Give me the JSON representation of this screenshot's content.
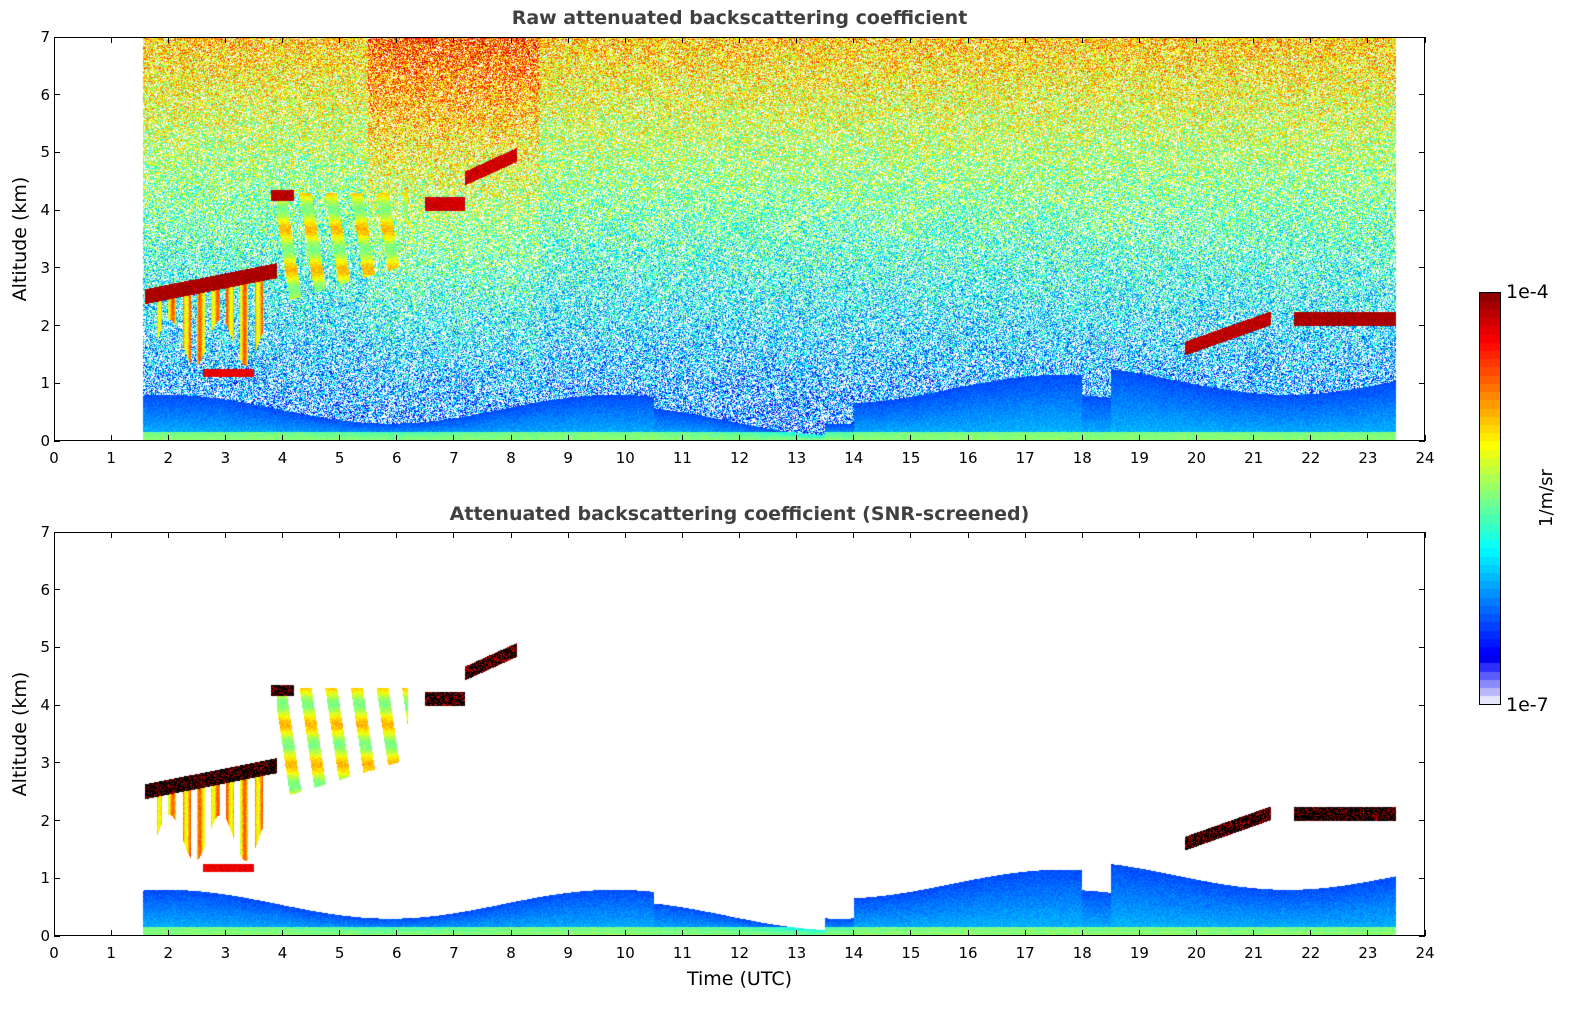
{
  "chart_data": [
    {
      "type": "heatmap",
      "title": "Raw attenuated backscattering coefficient",
      "xlabel": "",
      "ylabel": "Altitude (km)",
      "xlim": [
        0,
        24
      ],
      "ylim": [
        0,
        7
      ],
      "xticks": [
        "0",
        "1",
        "2",
        "3",
        "4",
        "5",
        "6",
        "7",
        "8",
        "9",
        "10",
        "11",
        "12",
        "13",
        "14",
        "15",
        "16",
        "17",
        "18",
        "19",
        "20",
        "21",
        "22",
        "23",
        "24"
      ],
      "yticks": [
        "0",
        "1",
        "2",
        "3",
        "4",
        "5",
        "6",
        "7"
      ],
      "data_time_range": [
        1.55,
        23.5
      ],
      "screened": false,
      "features": [
        {
          "name": "cirrus layer",
          "t": [
            1.6,
            3.9
          ],
          "alt": [
            2.4,
            3.0
          ],
          "level": "high"
        },
        {
          "name": "virga streaks",
          "t": [
            1.8,
            3.8
          ],
          "alt": [
            1.7,
            2.7
          ],
          "level": "medium-high"
        },
        {
          "name": "ice cloud fallstreaks",
          "t": [
            4.0,
            6.2
          ],
          "alt": [
            2.4,
            4.5
          ],
          "level": "medium"
        },
        {
          "name": "mid-level cloud",
          "t": [
            6.5,
            8.1
          ],
          "alt": [
            4.0,
            5.0
          ],
          "level": "high"
        },
        {
          "name": "low cloud",
          "t": [
            2.6,
            3.5
          ],
          "alt": [
            1.0,
            1.3
          ],
          "level": "high"
        },
        {
          "name": "cloud layer",
          "t": [
            19.8,
            21.3
          ],
          "alt": [
            1.5,
            2.3
          ],
          "level": "high"
        },
        {
          "name": "cloud layer",
          "t": [
            21.7,
            23.5
          ],
          "alt": [
            2.0,
            2.3
          ],
          "level": "high"
        },
        {
          "name": "boundary layer",
          "t": [
            1.55,
            23.5
          ],
          "alt": [
            0.0,
            1.1
          ],
          "level": "low-medium"
        }
      ]
    },
    {
      "type": "heatmap",
      "title": "Attenuated backscattering coefficient (SNR-screened)",
      "xlabel": "Time (UTC)",
      "ylabel": "Altitude (km)",
      "xlim": [
        0,
        24
      ],
      "ylim": [
        0,
        7
      ],
      "xticks": [
        "0",
        "1",
        "2",
        "3",
        "4",
        "5",
        "6",
        "7",
        "8",
        "9",
        "10",
        "11",
        "12",
        "13",
        "14",
        "15",
        "16",
        "17",
        "18",
        "19",
        "20",
        "21",
        "22",
        "23",
        "24"
      ],
      "yticks": [
        "0",
        "1",
        "2",
        "3",
        "4",
        "5",
        "6",
        "7"
      ],
      "data_time_range": [
        1.55,
        23.5
      ],
      "screened": true
    }
  ],
  "colorbar": {
    "label": "1/m/sr",
    "min_label": "1e-7",
    "max_label": "1e-4",
    "colormap": "jet",
    "levels": 50
  }
}
